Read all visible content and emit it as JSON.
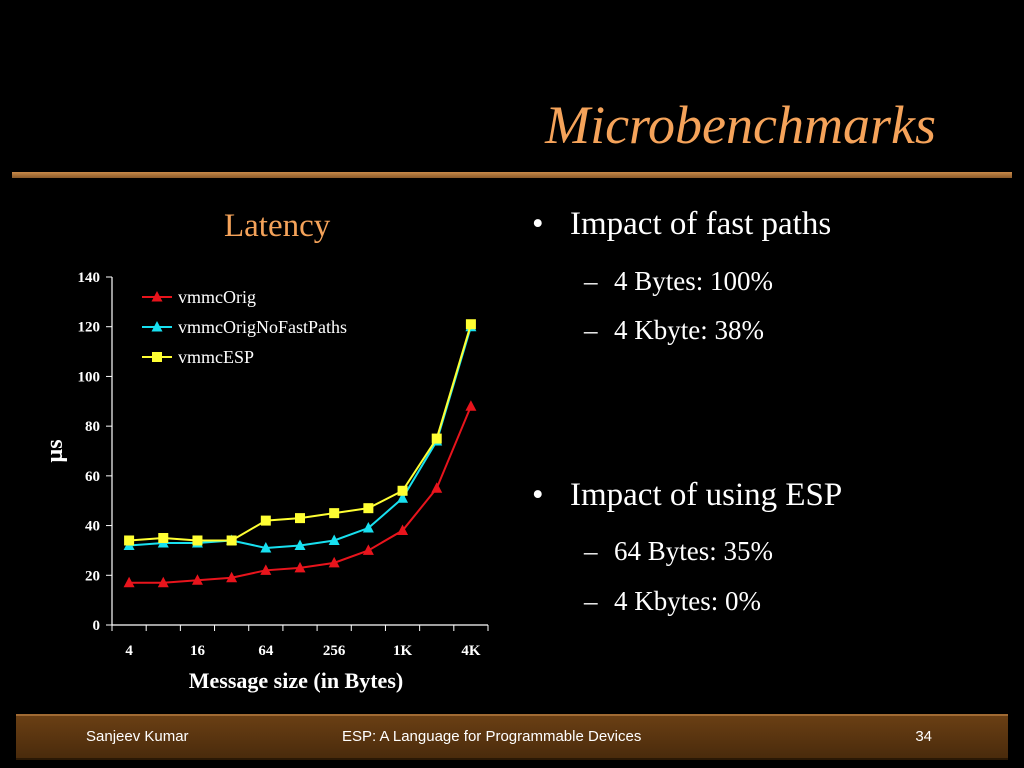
{
  "slide": {
    "title": "Microbenchmarks",
    "chart_heading": "Latency",
    "bullets": [
      {
        "text": "Impact of fast paths",
        "subs": [
          "4 Bytes: 100%",
          "4 Kbyte: 38%"
        ]
      },
      {
        "text": "Impact of using ESP",
        "subs": [
          "64 Bytes: 35%",
          "4 Kbytes:  0%"
        ]
      }
    ],
    "bullet_glyph": "•",
    "sub_glyph": "–"
  },
  "footer": {
    "author": "Sanjeev Kumar",
    "talk": "ESP: A Language for Programmable Devices",
    "page": "34"
  },
  "colors": {
    "title": "#f5a35a",
    "series_vmmcOrig": "#e8141c",
    "series_vmmcOrigNoFastPaths": "#18e0f0",
    "series_vmmcESP": "#ffff33",
    "footer_bar": "#5a3410"
  },
  "chart_data": {
    "type": "line",
    "title": "Latency",
    "xlabel": "Message size (in Bytes)",
    "ylabel": "µs",
    "ylim": [
      0,
      140
    ],
    "yticks": [
      0,
      20,
      40,
      60,
      80,
      100,
      120,
      140
    ],
    "x": [
      "4",
      "8",
      "16",
      "32",
      "64",
      "128",
      "256",
      "512",
      "1K",
      "2K",
      "4K"
    ],
    "x_tick_labels": [
      "4",
      "16",
      "64",
      "256",
      "1K",
      "4K"
    ],
    "legend_position": "top-left",
    "grid": false,
    "series": [
      {
        "name": "vmmcOrig",
        "marker": "triangle",
        "color": "#e8141c",
        "values": [
          17,
          17,
          18,
          19,
          22,
          23,
          25,
          30,
          38,
          55,
          88
        ]
      },
      {
        "name": "vmmcOrigNoFastPaths",
        "marker": "triangle",
        "color": "#18e0f0",
        "values": [
          32,
          33,
          33,
          34,
          31,
          32,
          34,
          39,
          51,
          74,
          120
        ]
      },
      {
        "name": "vmmcESP",
        "marker": "square",
        "color": "#ffff33",
        "values": [
          34,
          35,
          34,
          34,
          42,
          43,
          45,
          47,
          54,
          75,
          121
        ]
      }
    ]
  }
}
